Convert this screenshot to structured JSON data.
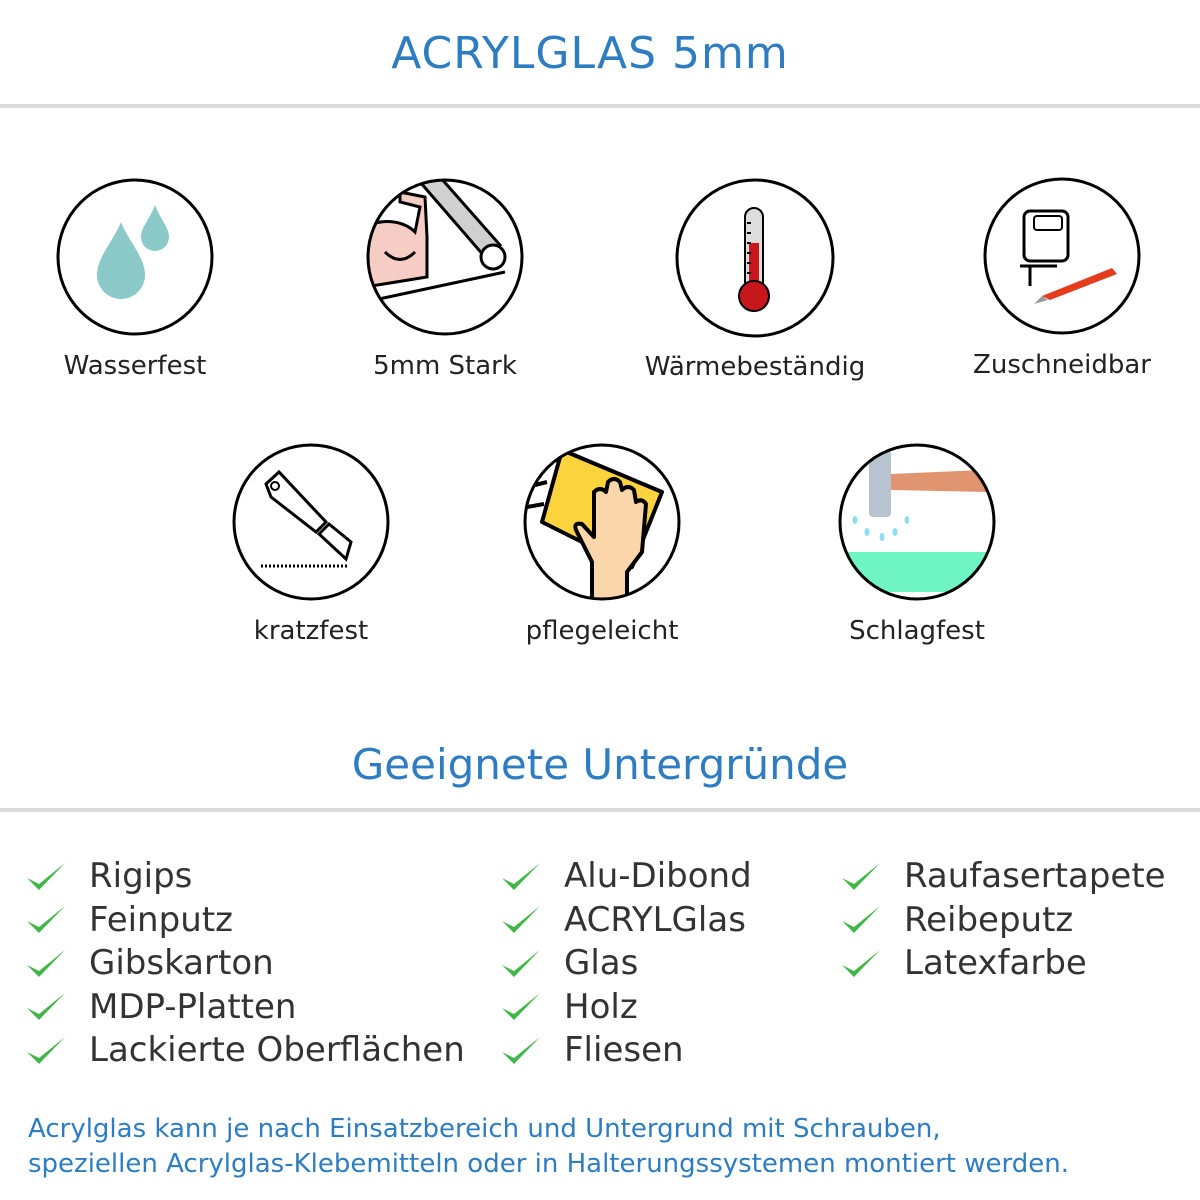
{
  "header": {
    "title": "ACRYLGLAS 5mm"
  },
  "features": [
    {
      "label": "Wasserfest",
      "icon": "water-drops-icon"
    },
    {
      "label": "5mm Stark",
      "icon": "strong-arm-icon"
    },
    {
      "label": "Wärmebeständig",
      "icon": "thermometer-icon"
    },
    {
      "label": "Zuschneidbar",
      "icon": "jigsaw-knife-icon"
    },
    {
      "label": "kratzfest",
      "icon": "cutter-knife-icon"
    },
    {
      "label": "pflegeleicht",
      "icon": "cleaning-hand-icon"
    },
    {
      "label": "Schlagfest",
      "icon": "hammer-icon"
    }
  ],
  "surfaces": {
    "title": "Geeignete Untergründe",
    "check_color": "#43b649",
    "columns": [
      [
        "Rigips",
        "Feinputz",
        "Gibskarton",
        "MDP-Platten",
        "Lackierte Oberflächen"
      ],
      [
        "Alu-Dibond",
        "ACRYLGlas",
        "Glas",
        "Holz",
        "Fliesen"
      ],
      [
        "Raufasertapete",
        "Reibeputz",
        "Latexfarbe"
      ]
    ]
  },
  "footer": {
    "line1": "Acrylglas kann je nach Einsatzbereich und Untergrund mit Schrauben,",
    "line2": "speziellen Acrylglas-Klebemitteln oder in Halterungssystemen montiert werden."
  },
  "colors": {
    "heading": "#2e7dc2",
    "divider": "#dcdcdc"
  }
}
